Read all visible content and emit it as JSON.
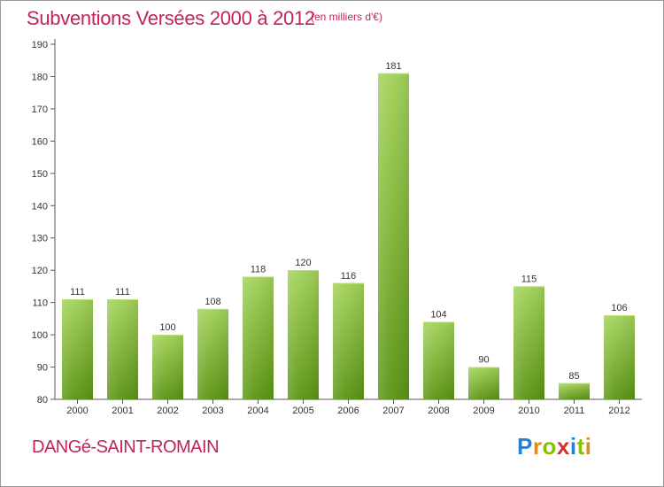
{
  "header": {
    "title": "Subventions Versées 2000 à 2012",
    "subtitle": "(en milliers d'€)"
  },
  "footer": {
    "commune": "DANGé-SAINT-ROMAIN",
    "logo": [
      "P",
      "r",
      "o",
      "x",
      "i",
      "t",
      "i"
    ]
  },
  "colors": {
    "accent": "#c0245a",
    "bar_top": "#9ccc4e",
    "bar_bottom": "#5f9a16",
    "axis": "#555555"
  },
  "chart_data": {
    "type": "bar",
    "title": "Subventions Versées 2000 à 2012",
    "subtitle": "(en milliers d'€)",
    "xlabel": "",
    "ylabel": "",
    "categories": [
      "2000",
      "2001",
      "2002",
      "2003",
      "2004",
      "2005",
      "2006",
      "2007",
      "2008",
      "2009",
      "2010",
      "2011",
      "2012"
    ],
    "values": [
      111,
      111,
      100,
      108,
      118,
      120,
      116,
      181,
      104,
      90,
      115,
      85,
      106
    ],
    "ylim": [
      80,
      190
    ],
    "yticks": [
      80,
      90,
      100,
      110,
      120,
      130,
      140,
      150,
      160,
      170,
      180,
      190
    ],
    "grid": false,
    "legend": "none"
  }
}
